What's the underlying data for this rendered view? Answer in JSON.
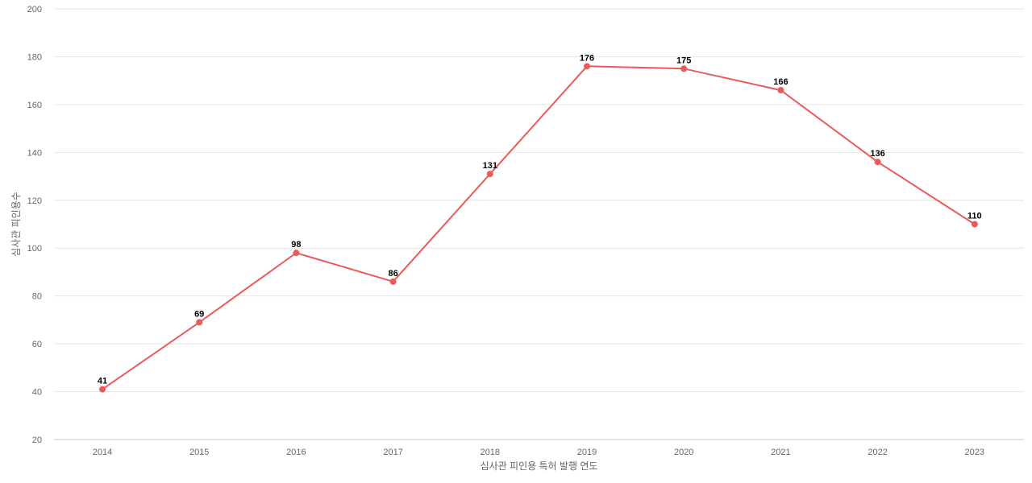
{
  "chart_data": {
    "type": "line",
    "categories": [
      "2014",
      "2015",
      "2016",
      "2017",
      "2018",
      "2019",
      "2020",
      "2021",
      "2022",
      "2023"
    ],
    "series": [
      {
        "values": [
          41,
          69,
          98,
          86,
          131,
          176,
          175,
          166,
          136,
          110
        ]
      }
    ],
    "xlabel": "심사관 피인용 특허 발행 연도",
    "ylabel": "심사관 피인용수",
    "ylim": [
      20,
      200
    ],
    "yticks": [
      20,
      40,
      60,
      80,
      100,
      120,
      140,
      160,
      180,
      200
    ],
    "grid": true,
    "data_labels": true,
    "colors": {
      "line": "#ea5a5a",
      "grid": "#e6e6e6",
      "tick_text": "#666666",
      "label_text": "#000000"
    }
  }
}
